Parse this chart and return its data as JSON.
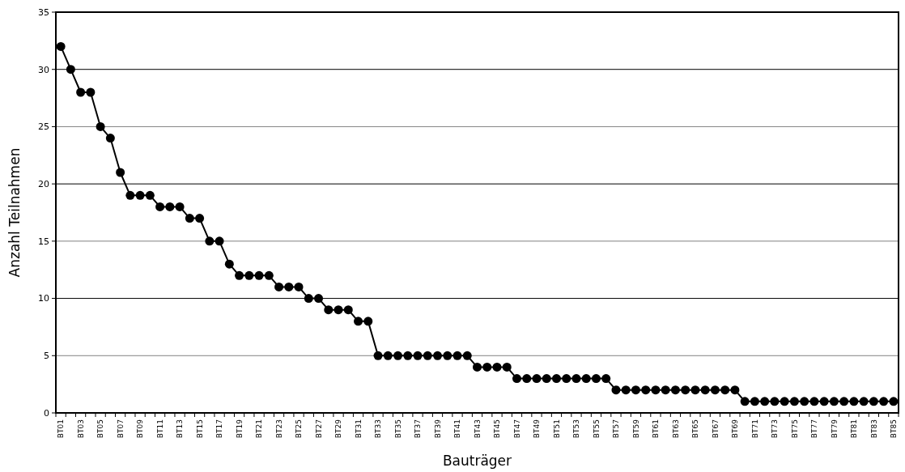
{
  "chart_data": {
    "type": "line",
    "xlabel": "Bauträger",
    "ylabel": "Anzahl Teilnahmen",
    "categories": [
      "BT01",
      null,
      "BT03",
      null,
      "BT05",
      null,
      "BT07",
      null,
      "BT09",
      null,
      "BT11",
      null,
      "BT13",
      null,
      "BT15",
      null,
      "BT17",
      null,
      "BT19",
      null,
      "BT21",
      null,
      "BT23",
      null,
      "BT25",
      null,
      "BT27",
      null,
      "BT29",
      null,
      "BT31",
      null,
      "BT33",
      null,
      "BT35",
      null,
      "BT37",
      null,
      "BT39",
      null,
      "BT41",
      null,
      "BT43",
      null,
      "BT45",
      null,
      "BT47",
      null,
      "BT49",
      null,
      "BT51",
      null,
      "BT53",
      null,
      "BT55",
      null,
      "BT57",
      null,
      "BT59",
      null,
      "BT61",
      null,
      "BT63",
      null,
      "BT65",
      null,
      "BT67",
      null,
      "BT69",
      null,
      "BT71",
      null,
      "BT73",
      null,
      "BT75",
      null,
      "BT77",
      null,
      "BT79",
      null,
      "BT81",
      null,
      "BT83",
      null,
      "BT85"
    ],
    "series": [
      {
        "color": "#000000",
        "values": [
          32,
          30,
          28,
          28,
          25,
          24,
          21,
          19,
          19,
          19,
          18,
          18,
          18,
          17,
          17,
          15,
          15,
          13,
          12,
          12,
          12,
          12,
          11,
          11,
          11,
          10,
          10,
          9,
          9,
          9,
          8,
          8,
          5,
          5,
          5,
          5,
          5,
          5,
          5,
          5,
          5,
          5,
          4,
          4,
          4,
          4,
          3,
          3,
          3,
          3,
          3,
          3,
          3,
          3,
          3,
          3,
          2,
          2,
          2,
          2,
          2,
          2,
          2,
          2,
          2,
          2,
          2,
          2,
          2,
          1,
          1,
          1,
          1,
          1,
          1,
          1,
          1,
          1,
          1,
          1,
          1,
          1,
          1,
          1,
          1
        ]
      }
    ],
    "ylim": [
      0,
      35
    ],
    "yticks": [
      0,
      5,
      10,
      15,
      20,
      25,
      30,
      35
    ],
    "grid": "y",
    "marker": "circle",
    "line_style": "solid"
  }
}
